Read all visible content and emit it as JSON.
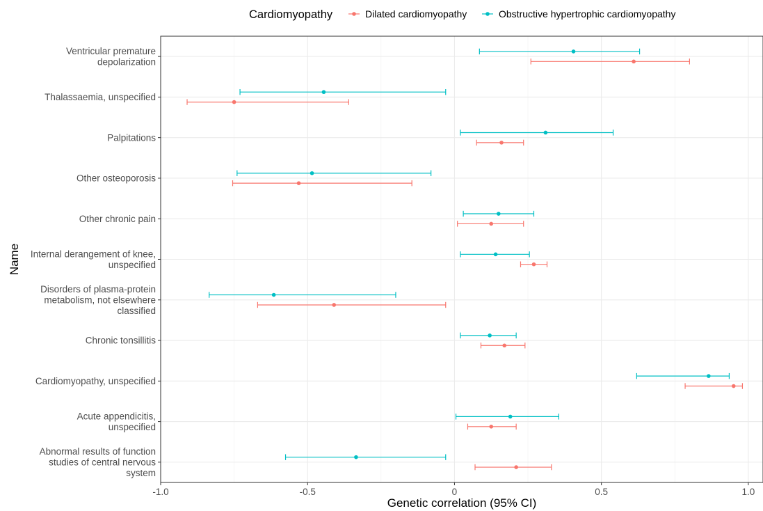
{
  "chart_data": {
    "type": "forest",
    "xlabel": "Genetic correlation (95% CI)",
    "ylabel": "Name",
    "xlim": [
      -1.0,
      1.05
    ],
    "x_ticks": [
      "-1.0",
      "-0.5",
      "0",
      "0.5",
      "1.0"
    ],
    "x_tick_values": [
      -1.0,
      -0.5,
      0,
      0.5,
      1.0
    ],
    "grid": true,
    "legend": {
      "title": "Cardiomyopathy",
      "placement": "top",
      "entries": [
        "Dilated cardiomyopathy",
        "Obstructive hypertrophic cardiomyopathy"
      ]
    },
    "categories": [
      [
        "Ventricular premature",
        "depolarization"
      ],
      [
        "Thalassaemia, unspecified"
      ],
      [
        "Palpitations"
      ],
      [
        "Other osteoporosis"
      ],
      [
        "Other chronic pain"
      ],
      [
        "Internal derangement of knee,",
        "unspecified"
      ],
      [
        "Disorders of plasma-protein",
        "metabolism, not elsewhere",
        "classified"
      ],
      [
        "Chronic tonsillitis"
      ],
      [
        "Cardiomyopathy, unspecified"
      ],
      [
        "Acute appendicitis,",
        "unspecified"
      ],
      [
        "Abnormal results of function",
        "studies of central nervous",
        "system"
      ]
    ],
    "series": [
      {
        "name": "Dilated cardiomyopathy",
        "color": "#F8766D",
        "estimate": [
          0.61,
          -0.75,
          0.16,
          -0.53,
          0.125,
          0.27,
          -0.41,
          0.17,
          0.95,
          0.125,
          0.21
        ],
        "ci_low": [
          0.26,
          -0.91,
          0.075,
          -0.755,
          0.01,
          0.225,
          -0.67,
          0.09,
          0.785,
          0.045,
          0.07
        ],
        "ci_high": [
          0.8,
          -0.36,
          0.235,
          -0.145,
          0.235,
          0.315,
          -0.03,
          0.24,
          0.98,
          0.21,
          0.33
        ]
      },
      {
        "name": "Obstructive hypertrophic cardiomyopathy",
        "color": "#00BFC4",
        "estimate": [
          0.405,
          -0.445,
          0.31,
          -0.485,
          0.15,
          0.14,
          -0.615,
          0.12,
          0.865,
          0.19,
          -0.335
        ],
        "ci_low": [
          0.085,
          -0.73,
          0.02,
          -0.74,
          0.03,
          0.02,
          -0.835,
          0.02,
          0.62,
          0.005,
          -0.575
        ],
        "ci_high": [
          0.63,
          -0.03,
          0.54,
          -0.08,
          0.27,
          0.255,
          -0.2,
          0.21,
          0.935,
          0.355,
          -0.03
        ]
      }
    ]
  }
}
